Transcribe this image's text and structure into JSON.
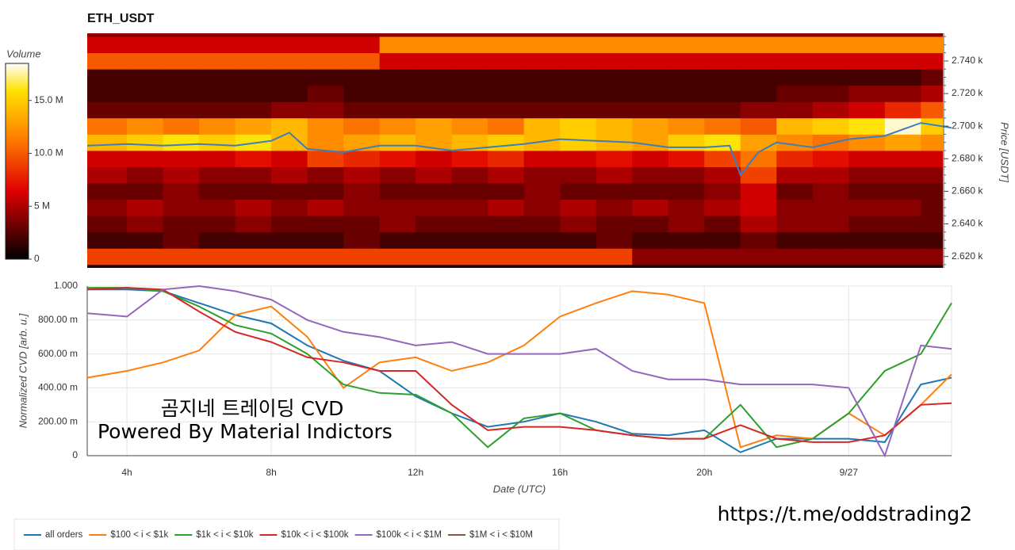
{
  "chart_data": [
    {
      "type": "heatmap",
      "title": "ETH_USDT",
      "colorbar_label": "Volume",
      "y_label": "Price [USDT]",
      "xlim": [
        2.9,
        26.85
      ],
      "ylim": [
        2613,
        2757
      ],
      "clim": [
        0,
        18.5
      ],
      "cticks": [
        {
          "value": 0,
          "label": "0"
        },
        {
          "value": 5,
          "label": "5 M"
        },
        {
          "value": 10,
          "label": "10.0 M"
        },
        {
          "value": 15,
          "label": "15.0 M"
        }
      ],
      "yticks": [
        {
          "value": 2620,
          "label": "2.620 k"
        },
        {
          "value": 2640,
          "label": "2.640 k"
        },
        {
          "value": 2660,
          "label": "2.660 k"
        },
        {
          "value": 2680,
          "label": "2.680 k"
        },
        {
          "value": 2700,
          "label": "2.700 k"
        },
        {
          "value": 2720,
          "label": "2.720 k"
        },
        {
          "value": 2740,
          "label": "2.740 k"
        }
      ],
      "xbins": [
        2.9,
        4,
        5,
        6,
        7,
        8,
        9,
        10,
        11,
        12,
        13,
        14,
        15,
        16,
        17,
        18,
        19,
        20,
        21,
        22,
        23,
        24,
        25,
        26,
        26.6
      ],
      "ybins": [
        2605,
        2615,
        2625,
        2635,
        2645,
        2655,
        2665,
        2675,
        2685,
        2695,
        2705,
        2715,
        2725,
        2735,
        2745,
        2755,
        2765
      ],
      "values": [
        [
          1,
          1,
          1,
          1,
          1,
          1,
          1,
          1,
          1,
          1,
          1,
          1,
          1,
          1,
          1,
          1,
          1,
          1,
          1,
          1,
          1,
          1,
          1,
          1
        ],
        [
          9,
          9,
          9,
          9,
          9,
          9,
          9,
          9,
          9,
          9,
          9,
          9,
          9,
          9,
          9,
          4,
          4,
          4,
          4,
          4,
          4,
          4,
          4,
          4
        ],
        [
          2,
          2,
          3,
          2,
          2,
          2,
          2,
          3,
          2,
          2,
          2,
          2,
          2,
          2,
          3,
          2,
          2,
          2,
          3,
          2,
          2,
          2,
          2,
          2
        ],
        [
          3,
          4,
          3,
          3,
          4,
          3,
          3,
          3,
          4,
          3,
          3,
          3,
          3,
          4,
          3,
          3,
          4,
          3,
          5,
          4,
          4,
          3,
          3,
          3
        ],
        [
          4,
          5,
          4,
          4,
          5,
          4,
          5,
          4,
          4,
          4,
          4,
          5,
          4,
          5,
          4,
          5,
          4,
          5,
          6,
          4,
          4,
          4,
          4,
          3
        ],
        [
          3,
          3,
          4,
          3,
          3,
          3,
          3,
          4,
          3,
          3,
          3,
          3,
          4,
          3,
          3,
          3,
          3,
          4,
          6,
          3,
          4,
          3,
          3,
          3
        ],
        [
          5,
          4,
          5,
          4,
          4,
          5,
          4,
          5,
          4,
          5,
          4,
          5,
          4,
          4,
          5,
          4,
          4,
          5,
          9,
          5,
          5,
          4,
          4,
          4
        ],
        [
          6,
          6,
          6,
          6,
          7,
          6,
          9,
          8,
          7,
          6,
          7,
          8,
          6,
          6,
          7,
          6,
          7,
          9,
          11,
          8,
          7,
          6,
          6,
          6
        ],
        [
          14,
          15,
          16,
          15,
          16,
          14,
          12,
          13,
          14,
          13,
          14,
          15,
          14,
          15,
          14,
          13,
          15,
          16,
          13,
          12,
          11,
          12,
          13,
          12
        ],
        [
          11,
          12,
          11,
          12,
          13,
          14,
          12,
          11,
          12,
          13,
          12,
          11,
          14,
          15,
          14,
          13,
          12,
          11,
          10,
          14,
          15,
          16,
          18,
          15
        ],
        [
          3,
          3,
          3,
          3,
          3,
          4,
          4,
          3,
          3,
          3,
          3,
          3,
          3,
          3,
          3,
          3,
          3,
          3,
          4,
          4,
          5,
          6,
          8,
          10
        ],
        [
          2,
          2,
          2,
          2,
          2,
          2,
          3,
          2,
          2,
          2,
          2,
          2,
          2,
          2,
          2,
          2,
          2,
          2,
          2,
          3,
          3,
          4,
          4,
          5
        ],
        [
          2,
          2,
          2,
          2,
          2,
          2,
          2,
          2,
          2,
          2,
          2,
          2,
          2,
          2,
          2,
          2,
          2,
          2,
          2,
          2,
          2,
          2,
          2,
          3
        ],
        [
          10,
          10,
          10,
          10,
          10,
          10,
          10,
          10,
          6,
          6,
          6,
          6,
          6,
          6,
          6,
          6,
          6,
          6,
          6,
          6,
          6,
          6,
          6,
          6
        ],
        [
          6,
          6,
          6,
          6,
          6,
          6,
          6,
          6,
          12,
          12,
          12,
          12,
          12,
          12,
          12,
          12,
          12,
          12,
          12,
          12,
          12,
          12,
          12,
          12
        ],
        [
          4,
          4,
          4,
          4,
          4,
          4,
          4,
          4,
          4,
          4,
          4,
          4,
          4,
          4,
          4,
          4,
          4,
          4,
          4,
          4,
          4,
          4,
          4,
          4
        ]
      ],
      "price": {
        "color": "#3b7fc0",
        "x": [
          2.9,
          4,
          5,
          6,
          7,
          8,
          8.5,
          9,
          10,
          11,
          12,
          13,
          14,
          15,
          16,
          17,
          18,
          19,
          20,
          20.7,
          21,
          21.5,
          22,
          23,
          24,
          25,
          26,
          26.85
        ],
        "y": [
          2688,
          2689,
          2688,
          2689,
          2688,
          2691,
          2696,
          2686,
          2684,
          2688,
          2688,
          2685,
          2687,
          2689,
          2692,
          2691,
          2690,
          2687,
          2687,
          2688,
          2670,
          2684,
          2690,
          2687,
          2692,
          2694,
          2702,
          2699
        ]
      }
    },
    {
      "type": "line",
      "y_label": "Normalized CVD [arb. u.]",
      "x_label": "Date (UTC)",
      "grid": true,
      "xlim": [
        2.9,
        26.85
      ],
      "ylim": [
        0,
        1
      ],
      "xticks": [
        {
          "value": 4,
          "label": "4h"
        },
        {
          "value": 8,
          "label": "8h"
        },
        {
          "value": 12,
          "label": "12h"
        },
        {
          "value": 16,
          "label": "16h"
        },
        {
          "value": 20,
          "label": "20h"
        },
        {
          "value": 24,
          "label": "9/27"
        }
      ],
      "yticks": [
        0,
        {
          "value": 0.2,
          "label": "200.00 m"
        },
        {
          "value": 0.4,
          "label": "400.00 m"
        },
        {
          "value": 0.6,
          "label": "600.00 m"
        },
        {
          "value": 0.8,
          "label": "800.00 m"
        },
        {
          "value": 1,
          "label": "1.000"
        }
      ],
      "x": [
        2.9,
        4,
        5,
        6,
        7,
        8,
        9,
        10,
        11,
        12,
        13,
        14,
        15,
        16,
        17,
        18,
        19,
        20,
        21,
        22,
        23,
        24,
        25,
        26,
        26.85
      ],
      "series": [
        {
          "name": "all orders",
          "color": "#1f77b4",
          "values": [
            0.98,
            0.98,
            0.97,
            0.9,
            0.83,
            0.78,
            0.65,
            0.56,
            0.5,
            0.35,
            0.25,
            0.17,
            0.2,
            0.25,
            0.2,
            0.13,
            0.12,
            0.15,
            0.02,
            0.1,
            0.1,
            0.1,
            0.08,
            0.42,
            0.46
          ]
        },
        {
          "name": "$100 < i < $1k",
          "color": "#ff7f0e",
          "values": [
            0.46,
            0.5,
            0.55,
            0.62,
            0.83,
            0.88,
            0.7,
            0.4,
            0.55,
            0.58,
            0.5,
            0.55,
            0.65,
            0.82,
            0.9,
            0.97,
            0.95,
            0.9,
            0.05,
            0.12,
            0.1,
            0.25,
            0.12,
            0.3,
            0.48
          ]
        },
        {
          "name": "$1k < i < $10k",
          "color": "#2ca02c",
          "values": [
            0.99,
            0.99,
            0.97,
            0.88,
            0.77,
            0.72,
            0.6,
            0.42,
            0.37,
            0.36,
            0.25,
            0.05,
            0.22,
            0.25,
            0.15,
            0.12,
            0.1,
            0.1,
            0.3,
            0.05,
            0.1,
            0.25,
            0.5,
            0.6,
            0.9
          ]
        },
        {
          "name": "$10k < i < $100k",
          "color": "#d62728",
          "values": [
            0.98,
            0.99,
            0.98,
            0.85,
            0.73,
            0.67,
            0.58,
            0.55,
            0.5,
            0.5,
            0.3,
            0.15,
            0.17,
            0.17,
            0.15,
            0.12,
            0.1,
            0.1,
            0.18,
            0.1,
            0.08,
            0.08,
            0.12,
            0.3,
            0.31
          ]
        },
        {
          "name": "$100k < i < $1M",
          "color": "#9467bd",
          "values": [
            0.84,
            0.82,
            0.98,
            1.0,
            0.97,
            0.92,
            0.8,
            0.73,
            0.7,
            0.65,
            0.67,
            0.6,
            0.6,
            0.6,
            0.63,
            0.5,
            0.45,
            0.45,
            0.42,
            0.42,
            0.42,
            0.4,
            0.0,
            0.65,
            0.63
          ]
        },
        {
          "name": "$1M < i < $10M",
          "color": "#8c564b",
          "values": [
            null,
            null,
            null,
            null,
            null,
            null,
            null,
            null,
            null,
            null,
            null,
            null,
            null,
            null,
            null,
            null,
            null,
            null,
            null,
            null,
            null,
            null,
            null,
            null,
            null
          ]
        }
      ],
      "annotations": [
        "곰지네 트레이딩 CVD",
        "Powered By Material Indictors",
        "https://t.me/oddstrading2"
      ]
    }
  ]
}
